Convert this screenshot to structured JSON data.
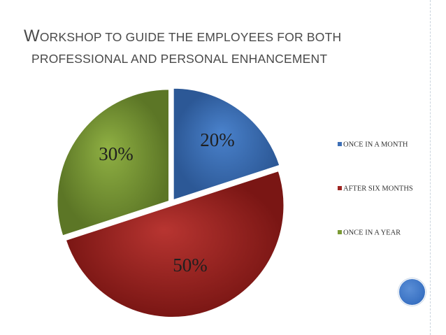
{
  "title": {
    "first_letter": "W",
    "line1_rest": "ORKSHOP TO GUIDE THE EMPLOYEES FOR BOTH",
    "line2": "PROFESSIONAL AND PERSONAL ENHANCEMENT"
  },
  "chart_data": {
    "type": "pie",
    "title": "WORKSHOP TO GUIDE THE EMPLOYEES FOR BOTH PROFESSIONAL AND PERSONAL ENHANCEMENT",
    "categories": [
      "ONCE IN A MONTH",
      "AFTER SIX MONTHS",
      "ONCE IN A YEAR"
    ],
    "values": [
      20,
      50,
      30
    ],
    "labels": [
      "20%",
      "50%",
      "30%"
    ],
    "colors": [
      "#3d6fb6",
      "#9e2522",
      "#7b9a35"
    ],
    "legend": "right"
  }
}
